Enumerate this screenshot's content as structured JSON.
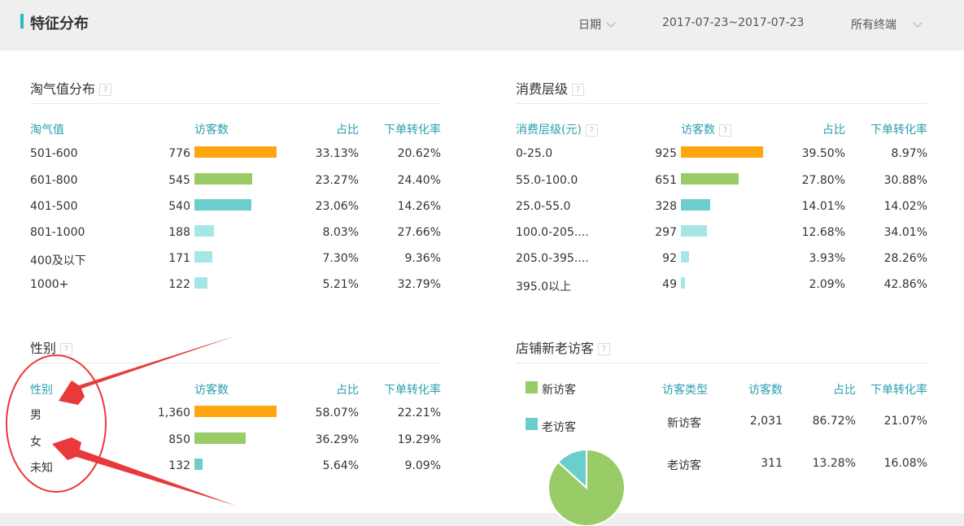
{
  "header": {
    "title": "特征分布",
    "date_label": "日期",
    "date_range": "2017-07-23~2017-07-23",
    "terminal": "所有终端"
  },
  "colors": {
    "bars": [
      "#ffa510",
      "#99cc66",
      "#6ccdcd",
      "#a6e6e6",
      "#a6e6e6",
      "#a6e6e6"
    ],
    "new_visitor": "#99cc66",
    "old_visitor": "#6ccdcd",
    "header_text": "#2a9fae",
    "annotation": "#e83a3a"
  },
  "taoqi": {
    "title": "淘气值分布",
    "columns": [
      "淘气值",
      "访客数",
      "占比",
      "下单转化率"
    ],
    "rows": [
      {
        "label": "501-600",
        "count": "776",
        "value": 776,
        "pct": "33.13%",
        "rate": "20.62%"
      },
      {
        "label": "601-800",
        "count": "545",
        "value": 545,
        "pct": "23.27%",
        "rate": "24.40%"
      },
      {
        "label": "401-500",
        "count": "540",
        "value": 540,
        "pct": "23.06%",
        "rate": "14.26%"
      },
      {
        "label": "801-1000",
        "count": "188",
        "value": 188,
        "pct": "8.03%",
        "rate": "27.66%"
      },
      {
        "label": "400及以下",
        "count": "171",
        "value": 171,
        "pct": "7.30%",
        "rate": "9.36%"
      },
      {
        "label": "1000+",
        "count": "122",
        "value": 122,
        "pct": "5.21%",
        "rate": "32.79%"
      }
    ]
  },
  "consume": {
    "title": "消费层级",
    "columns": [
      "消费层级(元)",
      "访客数",
      "占比",
      "下单转化率"
    ],
    "rows": [
      {
        "label": "0-25.0",
        "count": "925",
        "value": 925,
        "pct": "39.50%",
        "rate": "8.97%"
      },
      {
        "label": "55.0-100.0",
        "count": "651",
        "value": 651,
        "pct": "27.80%",
        "rate": "30.88%"
      },
      {
        "label": "25.0-55.0",
        "count": "328",
        "value": 328,
        "pct": "14.01%",
        "rate": "14.02%"
      },
      {
        "label": "100.0-205....",
        "count": "297",
        "value": 297,
        "pct": "12.68%",
        "rate": "34.01%"
      },
      {
        "label": "205.0-395....",
        "count": "92",
        "value": 92,
        "pct": "3.93%",
        "rate": "28.26%"
      },
      {
        "label": "395.0以上",
        "count": "49",
        "value": 49,
        "pct": "2.09%",
        "rate": "42.86%"
      }
    ]
  },
  "gender": {
    "title": "性别",
    "columns": [
      "性别",
      "访客数",
      "占比",
      "下单转化率"
    ],
    "rows": [
      {
        "label": "男",
        "count": "1,360",
        "value": 1360,
        "pct": "58.07%",
        "rate": "22.21%"
      },
      {
        "label": "女",
        "count": "850",
        "value": 850,
        "pct": "36.29%",
        "rate": "19.29%"
      },
      {
        "label": "未知",
        "count": "132",
        "value": 132,
        "pct": "5.64%",
        "rate": "9.09%"
      }
    ]
  },
  "visitors": {
    "title": "店铺新老访客",
    "legend": [
      "新访客",
      "老访客"
    ],
    "columns": [
      "访客类型",
      "访客数",
      "占比",
      "下单转化率"
    ],
    "rows": [
      {
        "label": "新访客",
        "count": "2,031",
        "pct": "86.72%",
        "rate": "21.07%",
        "share": 86.72
      },
      {
        "label": "老访客",
        "count": "311",
        "pct": "13.28%",
        "rate": "16.08%",
        "share": 13.28
      }
    ]
  }
}
